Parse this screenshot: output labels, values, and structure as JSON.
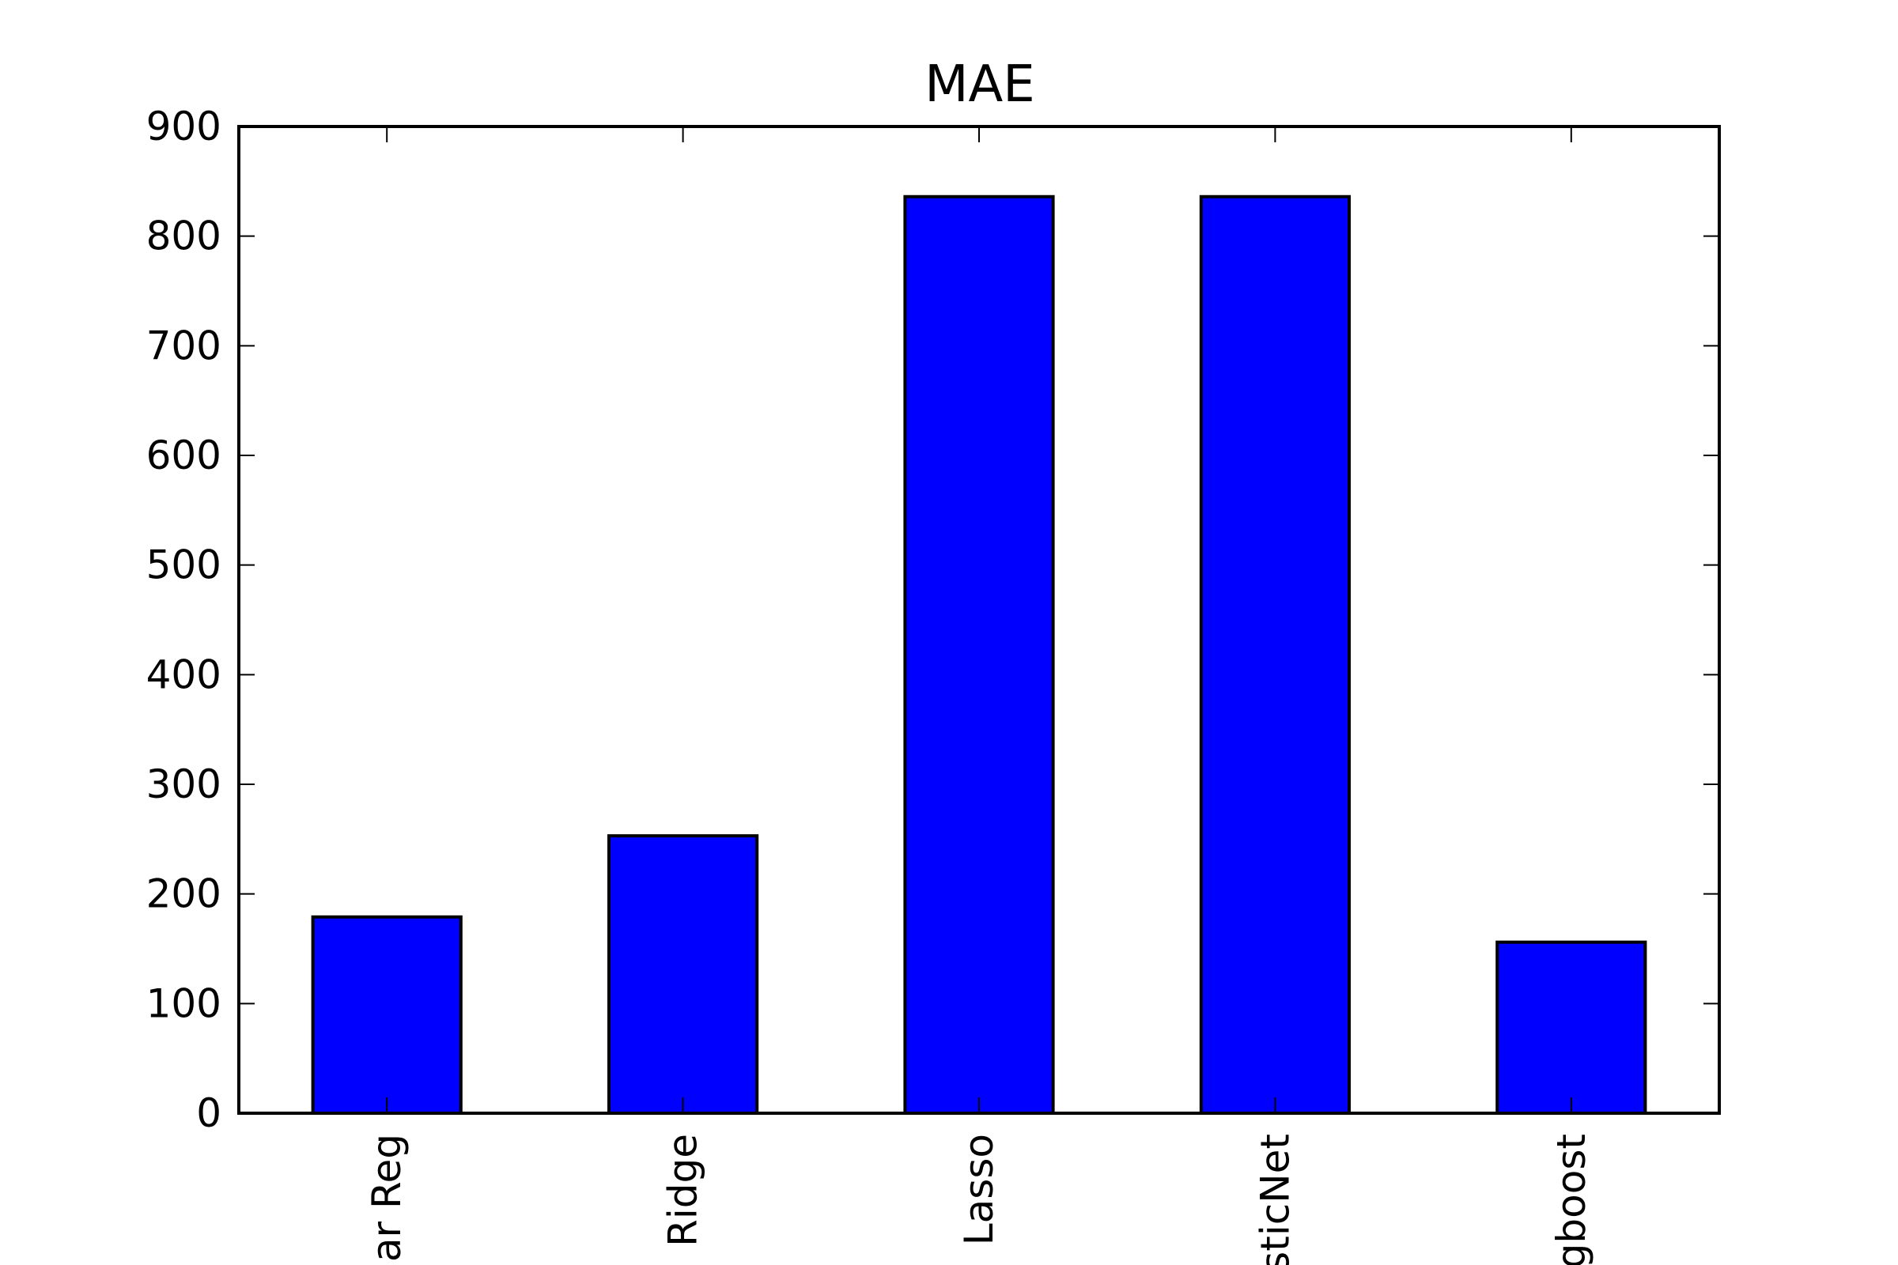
{
  "chart_data": {
    "type": "bar",
    "title": "MAE",
    "xlabel": "",
    "ylabel": "",
    "categories": [
      "ar Reg",
      "Ridge",
      "Lasso",
      "sticNet",
      "gboost"
    ],
    "values": [
      179,
      253,
      836,
      836,
      156
    ],
    "ylim": [
      0,
      900
    ],
    "yticks": [
      0,
      100,
      200,
      300,
      400,
      500,
      600,
      700,
      800,
      900
    ],
    "ytick_labels": [
      "0",
      "100",
      "200",
      "300",
      "400",
      "500",
      "600",
      "700",
      "800",
      "900"
    ],
    "x_label_rotation": "vertical",
    "grid": false,
    "legend": "none",
    "bar_color": "#0000ff",
    "edge_color": "#000000"
  }
}
